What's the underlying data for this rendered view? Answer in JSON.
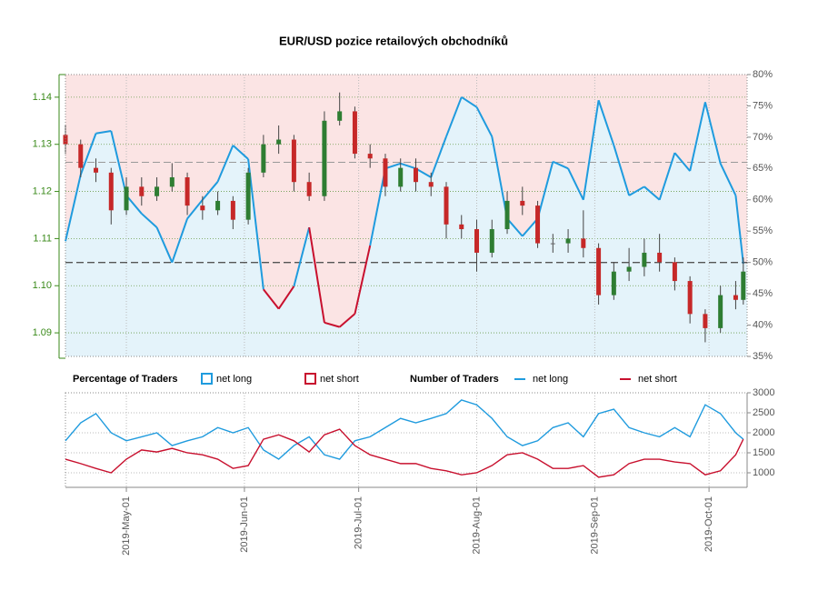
{
  "chart_data": [
    {
      "type": "candlestick",
      "title": "EUR/USD pozice retailových obchodníků",
      "x": [
        "2019-04-15",
        "2019-04-19",
        "2019-04-23",
        "2019-04-27",
        "2019-05-01",
        "2019-05-05",
        "2019-05-09",
        "2019-05-13",
        "2019-05-17",
        "2019-05-21",
        "2019-05-25",
        "2019-05-29",
        "2019-06-02",
        "2019-06-06",
        "2019-06-10",
        "2019-06-14",
        "2019-06-18",
        "2019-06-22",
        "2019-06-26",
        "2019-06-30",
        "2019-07-04",
        "2019-07-08",
        "2019-07-12",
        "2019-07-16",
        "2019-07-20",
        "2019-07-24",
        "2019-07-28",
        "2019-08-01",
        "2019-08-05",
        "2019-08-09",
        "2019-08-13",
        "2019-08-17",
        "2019-08-21",
        "2019-08-25",
        "2019-08-29",
        "2019-09-02",
        "2019-09-06",
        "2019-09-10",
        "2019-09-14",
        "2019-09-18",
        "2019-09-22",
        "2019-09-26",
        "2019-09-30",
        "2019-10-04",
        "2019-10-08",
        "2019-10-10"
      ],
      "open": [
        1.132,
        1.13,
        1.125,
        1.124,
        1.116,
        1.121,
        1.119,
        1.121,
        1.123,
        1.117,
        1.116,
        1.118,
        1.114,
        1.124,
        1.13,
        1.131,
        1.122,
        1.119,
        1.135,
        1.137,
        1.128,
        1.127,
        1.121,
        1.125,
        1.122,
        1.121,
        1.113,
        1.112,
        1.107,
        1.112,
        1.118,
        1.117,
        1.109,
        1.109,
        1.11,
        1.108,
        1.098,
        1.103,
        1.104,
        1.107,
        1.105,
        1.101,
        1.094,
        1.091,
        1.098,
        1.097
      ],
      "high": [
        1.134,
        1.131,
        1.127,
        1.125,
        1.123,
        1.123,
        1.123,
        1.126,
        1.124,
        1.119,
        1.12,
        1.119,
        1.125,
        1.132,
        1.134,
        1.132,
        1.124,
        1.137,
        1.141,
        1.138,
        1.13,
        1.128,
        1.127,
        1.127,
        1.124,
        1.122,
        1.115,
        1.114,
        1.114,
        1.12,
        1.121,
        1.118,
        1.111,
        1.112,
        1.116,
        1.109,
        1.105,
        1.108,
        1.11,
        1.111,
        1.106,
        1.102,
        1.095,
        1.1,
        1.101,
        1.106
      ],
      "low": [
        1.128,
        1.123,
        1.122,
        1.113,
        1.115,
        1.117,
        1.118,
        1.12,
        1.115,
        1.114,
        1.115,
        1.112,
        1.113,
        1.123,
        1.128,
        1.12,
        1.118,
        1.118,
        1.134,
        1.127,
        1.125,
        1.119,
        1.12,
        1.12,
        1.119,
        1.11,
        1.11,
        1.103,
        1.106,
        1.111,
        1.115,
        1.108,
        1.107,
        1.107,
        1.106,
        1.096,
        1.097,
        1.101,
        1.102,
        1.103,
        1.099,
        1.092,
        1.088,
        1.09,
        1.095,
        1.096
      ],
      "close": [
        1.13,
        1.125,
        1.124,
        1.116,
        1.121,
        1.119,
        1.121,
        1.123,
        1.117,
        1.116,
        1.118,
        1.114,
        1.124,
        1.13,
        1.131,
        1.122,
        1.119,
        1.135,
        1.137,
        1.128,
        1.127,
        1.121,
        1.125,
        1.122,
        1.121,
        1.113,
        1.112,
        1.107,
        1.112,
        1.118,
        1.117,
        1.109,
        1.109,
        1.11,
        1.108,
        1.098,
        1.103,
        1.104,
        1.107,
        1.105,
        1.101,
        1.094,
        1.091,
        1.098,
        1.097,
        1.103
      ],
      "up_color": "#2e7d32",
      "down_color": "#c62828",
      "ylim": [
        1.085,
        1.1448
      ],
      "yticks": [
        1.09,
        {
          "value": 1.1,
          "label": "1.10"
        },
        1.11,
        1.12,
        1.13,
        1.14
      ],
      "y2lim": [
        35,
        80
      ],
      "y2ticks": [
        {
          "value": 35,
          "label": "35%"
        },
        {
          "value": 40,
          "label": "40%"
        },
        {
          "value": 45,
          "label": "45%"
        },
        {
          "value": 50,
          "label": "50%"
        },
        {
          "value": 55,
          "label": "55%"
        },
        {
          "value": 60,
          "label": "60%"
        },
        {
          "value": 65,
          "label": "65%"
        },
        {
          "value": 70,
          "label": "70%"
        },
        {
          "value": 75,
          "label": "75%"
        },
        {
          "value": 80,
          "label": "80%"
        }
      ],
      "reference_lines": [
        50,
        66
      ],
      "legend_title": "Percentage of Traders",
      "series": [
        {
          "name": "net long",
          "color": "#1f9bde",
          "fill": "#e4f3fa",
          "axis": "y2",
          "values": [
            53.4,
            64,
            70.6,
            71,
            60.7,
            57.8,
            55.6,
            50,
            57,
            60,
            62.9,
            68.7,
            66.5,
            45.7,
            42.6,
            46.2,
            55.6,
            40.4,
            39.7,
            41.8,
            52.7,
            65,
            65.8,
            65,
            63.6,
            70.1,
            76.4,
            74.8,
            70.1,
            57,
            54.2,
            57,
            66.1,
            65,
            60,
            75.9,
            68.7,
            60.7,
            62.1,
            60,
            67.5,
            64.6,
            75.6,
            65.8,
            60.7,
            49.8
          ]
        },
        {
          "name": "net short",
          "color": "#c8102e",
          "fill": "#fbe4e4"
        }
      ]
    },
    {
      "type": "line",
      "legend_title": "Number of Traders",
      "x": [
        "2019-04-15",
        "2019-04-19",
        "2019-04-23",
        "2019-04-27",
        "2019-05-01",
        "2019-05-05",
        "2019-05-09",
        "2019-05-13",
        "2019-05-17",
        "2019-05-21",
        "2019-05-25",
        "2019-05-29",
        "2019-06-02",
        "2019-06-06",
        "2019-06-10",
        "2019-06-14",
        "2019-06-18",
        "2019-06-22",
        "2019-06-26",
        "2019-06-30",
        "2019-07-04",
        "2019-07-08",
        "2019-07-12",
        "2019-07-16",
        "2019-07-20",
        "2019-07-24",
        "2019-07-28",
        "2019-08-01",
        "2019-08-05",
        "2019-08-09",
        "2019-08-13",
        "2019-08-17",
        "2019-08-21",
        "2019-08-25",
        "2019-08-29",
        "2019-09-02",
        "2019-09-06",
        "2019-09-10",
        "2019-09-14",
        "2019-09-18",
        "2019-09-22",
        "2019-09-26",
        "2019-09-30",
        "2019-10-04",
        "2019-10-08",
        "2019-10-10"
      ],
      "xlim": [
        "2019-04-15",
        "2019-10-11"
      ],
      "xticks": [
        {
          "value": "2019-05-01",
          "label": "2019-May-01"
        },
        {
          "value": "2019-06-01",
          "label": "2019-Jun-01"
        },
        {
          "value": "2019-07-01",
          "label": "2019-Jul-01"
        },
        {
          "value": "2019-08-01",
          "label": "2019-Aug-01"
        },
        {
          "value": "2019-09-01",
          "label": "2019-Sep-01"
        },
        {
          "value": "2019-10-01",
          "label": "2019-Oct-01"
        }
      ],
      "ylim": [
        636,
        3000
      ],
      "yticks": [
        1000,
        1500,
        2000,
        2500,
        3000
      ],
      "series": [
        {
          "name": "net long",
          "color": "#1f9bde",
          "values": [
            1800,
            2250,
            2480,
            2000,
            1800,
            1900,
            2000,
            1680,
            1800,
            1900,
            2130,
            2000,
            2130,
            1570,
            1340,
            1680,
            1900,
            1450,
            1340,
            1800,
            1900,
            2130,
            2360,
            2250,
            2360,
            2480,
            2820,
            2700,
            2360,
            1900,
            1680,
            1800,
            2130,
            2250,
            1900,
            2480,
            2590,
            2130,
            2000,
            1900,
            2130,
            1900,
            2700,
            2480,
            2000,
            1840
          ]
        },
        {
          "name": "net short",
          "color": "#c8102e",
          "values": [
            1340,
            1230,
            1110,
            1000,
            1340,
            1570,
            1520,
            1610,
            1500,
            1450,
            1340,
            1110,
            1180,
            1840,
            1950,
            1800,
            1520,
            1950,
            2090,
            1680,
            1450,
            1340,
            1230,
            1230,
            1110,
            1050,
            950,
            1000,
            1180,
            1450,
            1500,
            1340,
            1110,
            1110,
            1180,
            890,
            950,
            1230,
            1340,
            1340,
            1270,
            1230,
            950,
            1050,
            1450,
            1840
          ]
        }
      ]
    }
  ]
}
